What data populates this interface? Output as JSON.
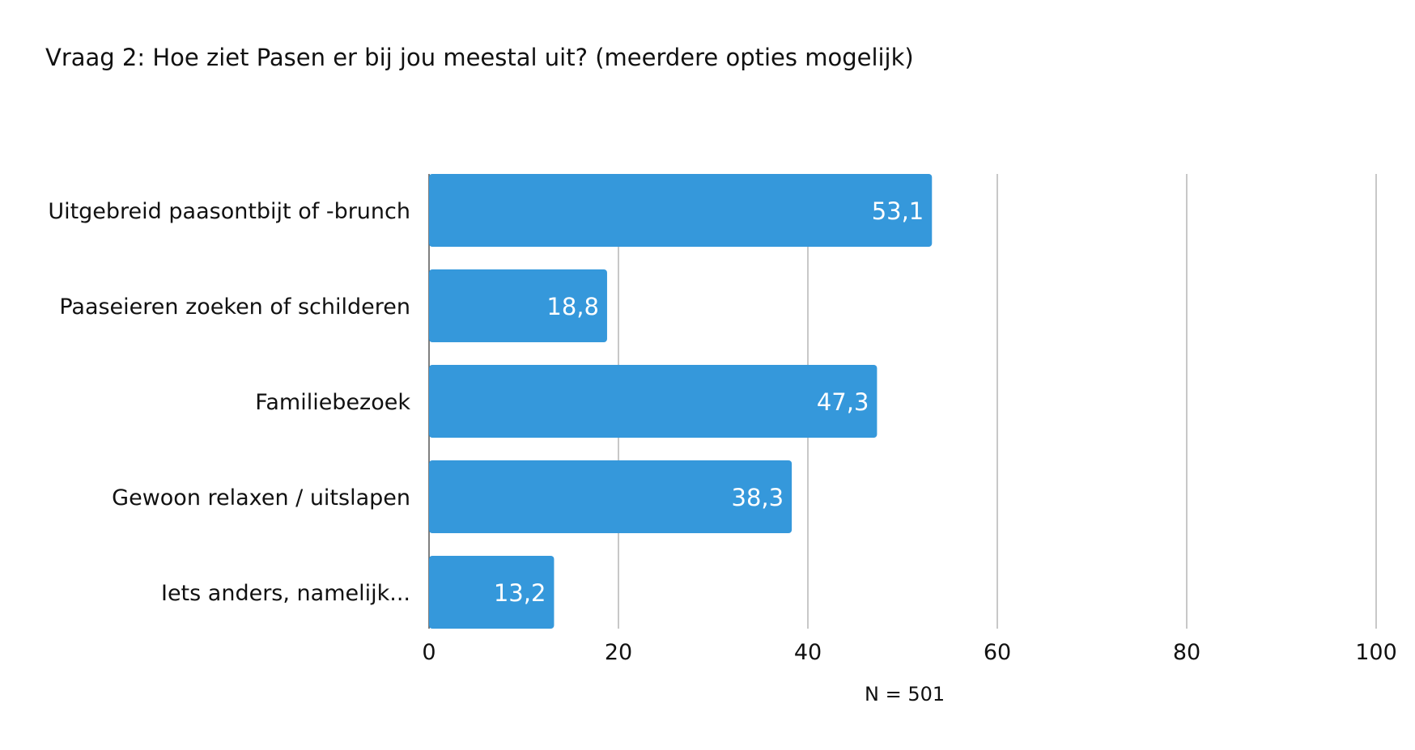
{
  "title": "Vraag 2: Hoe ziet Pasen er bij jou meestal uit? (meerdere opties mogelijk)",
  "note": "N = 501",
  "colors": {
    "bar": "#3598db",
    "grid": "#c8c8c8",
    "label": "#ffffff"
  },
  "chart_data": {
    "type": "bar",
    "orientation": "horizontal",
    "title": "Vraag 2: Hoe ziet Pasen er bij jou meestal uit? (meerdere opties mogelijk)",
    "categories": [
      "Uitgebreid paasontbijt of -brunch",
      "Paaseieren zoeken of schilderen",
      "Familiebezoek",
      "Gewoon relaxen / uitslapen",
      "Iets anders, namelijk..."
    ],
    "values": [
      53.1,
      18.8,
      47.3,
      38.3,
      13.2
    ],
    "value_labels": [
      "53,1",
      "18,8",
      "47,3",
      "38,3",
      "13,2"
    ],
    "xlim": [
      0,
      100
    ],
    "xticks": [
      0,
      20,
      40,
      60,
      80,
      100
    ],
    "grid": true,
    "xlabel": "",
    "ylabel": ""
  }
}
